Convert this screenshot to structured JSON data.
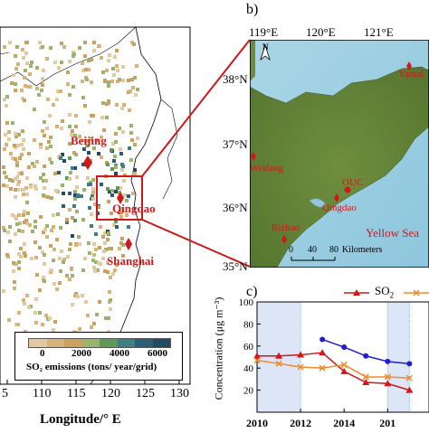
{
  "left_map": {
    "city_labels": [
      "Beijing",
      "Qingdao",
      "Shanghai"
    ],
    "x_ticks": [
      "5",
      "110",
      "115",
      "120",
      "125",
      "130"
    ],
    "x_axis_label": "Longitude/° E",
    "legend": {
      "ticks": [
        "0",
        "2000",
        "4000",
        "6000"
      ],
      "label": "SO₂ emissions (tons/ year/grid)",
      "colors": [
        "#e3c9a0",
        "#d9b27a",
        "#caa15e",
        "#9ab36f",
        "#5f9a57",
        "#3f7f83",
        "#2d5b78",
        "#234a63"
      ]
    }
  },
  "right_map": {
    "panel_label": "b)",
    "lon_ticks": [
      "119°E",
      "120°E",
      "121°E"
    ],
    "lat_ticks": [
      "38°N",
      "37°N",
      "36°N",
      "35°N"
    ],
    "north_label": "N",
    "sea_label": "Yellow Sea",
    "scale": {
      "ticks": [
        "0",
        "40",
        "80"
      ],
      "unit": "Kilometers"
    },
    "places": [
      "Yantai",
      "Weifang",
      "OUC",
      "Qingdao",
      "Rizhao"
    ]
  },
  "chart": {
    "panel_label": "c)",
    "legend_so2": "SO",
    "legend_so2_sub": "2",
    "y_label": "Concentration (μg m⁻³)",
    "y_ticks": [
      "20",
      "40",
      "60",
      "80",
      "100"
    ],
    "x_ticks": [
      "2010",
      "2012",
      "2014",
      "201"
    ]
  },
  "chart_data": {
    "type": "line",
    "x": [
      2010,
      2011,
      2012,
      2013,
      2014,
      2015,
      2016,
      2017
    ],
    "ylim": [
      0,
      100
    ],
    "series": [
      {
        "name": "SO₂",
        "color": "#d0181a",
        "marker": "triangle",
        "values": [
          51,
          51,
          52,
          54,
          37,
          27,
          26,
          20
        ]
      },
      {
        "color": "#f08a2a",
        "marker": "x",
        "values": [
          47,
          44,
          41,
          40,
          43,
          32,
          32,
          31
        ]
      },
      {
        "color": "#1f1fd0",
        "marker": "circle",
        "values": [
          null,
          null,
          null,
          66,
          59,
          51,
          46,
          44
        ]
      }
    ],
    "shaded_ranges": [
      [
        2010,
        2012
      ],
      [
        2016,
        2017
      ]
    ]
  }
}
